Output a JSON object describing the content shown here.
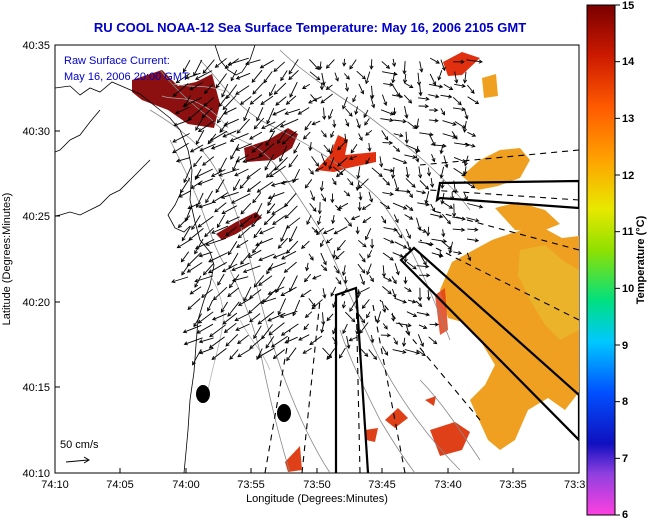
{
  "map": {
    "title": "RU COOL  NOAA-12  Sea Surface Temperature:  May 16, 2006 2105 GMT",
    "annotation_line1": "Raw Surface Current:",
    "annotation_line2": "May 16, 2006 20:00 GMT",
    "scale_label": "50 cm/s",
    "x_axis_label": "Longitude (Degrees:Minutes)",
    "y_axis_label": "Latitude (Degrees:Minutes)",
    "x_ticks": [
      "74:10",
      "74:05",
      "74:00",
      "73:55",
      "73:50",
      "73:45",
      "73:40",
      "73:35",
      "73:3"
    ],
    "y_ticks": [
      "40:35",
      "40:30",
      "40:25",
      "40:20",
      "40:15",
      "40:10"
    ],
    "colorbar": {
      "label": "Temperature (°C)",
      "ticks": [
        "15",
        "14",
        "13",
        "12",
        "11",
        "10",
        "9",
        "8",
        "7",
        "6"
      ],
      "min": 6,
      "max": 15
    },
    "colors": {
      "title": "#0000c8",
      "sst_warm": "#e9a21a",
      "sst_hot": "#e0401a",
      "sst_darkred": "#8c1010"
    }
  }
}
